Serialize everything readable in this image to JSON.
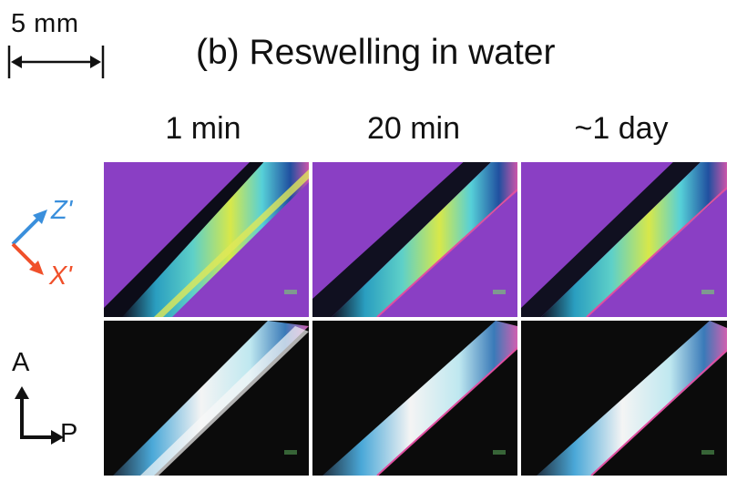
{
  "scale_bar": {
    "label": "5 mm"
  },
  "title": "(b) Reswelling in water",
  "columns": [
    {
      "label": "1 min"
    },
    {
      "label": "20 min"
    },
    {
      "label": "~1 day"
    }
  ],
  "top_axes": {
    "z_label": "Z'",
    "x_label": "X'",
    "z_color": "#3a8fdc",
    "x_color": "#f0502a"
  },
  "bottom_axes": {
    "a_label": "A",
    "p_label": "P"
  },
  "colors": {
    "purple_background": "#8a3fc4",
    "dark_background": "#0b0b0b"
  }
}
